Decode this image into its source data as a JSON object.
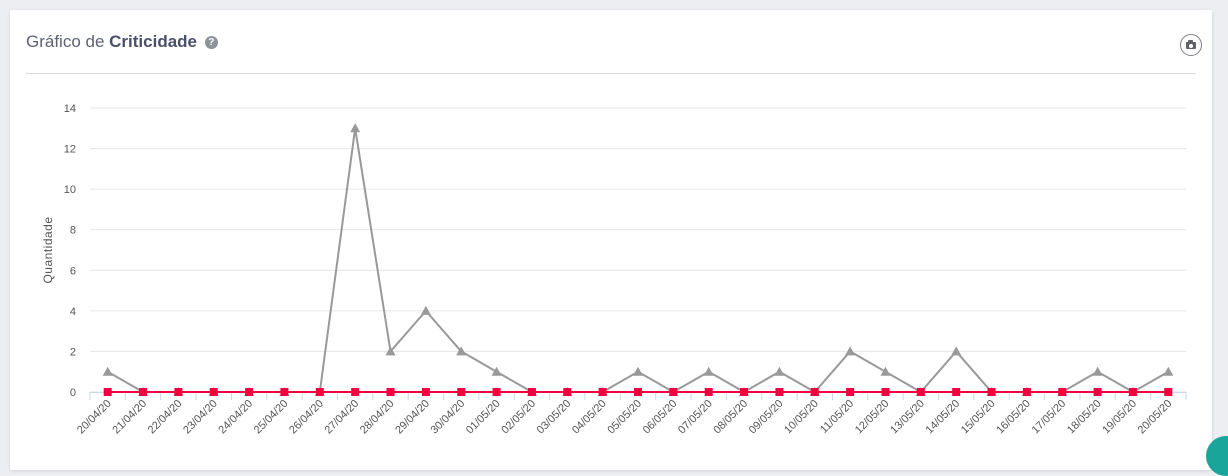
{
  "header": {
    "title_prefix": "Gráfico de ",
    "title_bold": "Criticidade",
    "help_icon": "question-circle-icon",
    "export_icon": "camera-icon"
  },
  "colors": {
    "series_gray": "#999999",
    "series_red": "#f0003f",
    "grid": "#e6e6e6"
  },
  "chart_data": {
    "type": "line",
    "title": "",
    "xlabel": "",
    "ylabel": "Quantidade",
    "ylim": [
      0,
      14
    ],
    "yticks": [
      0,
      2,
      4,
      6,
      8,
      10,
      12,
      14
    ],
    "grid": true,
    "categories": [
      "20/04/20",
      "21/04/20",
      "22/04/20",
      "23/04/20",
      "24/04/20",
      "25/04/20",
      "26/04/20",
      "27/04/20",
      "28/04/20",
      "29/04/20",
      "30/04/20",
      "01/05/20",
      "02/05/20",
      "03/05/20",
      "04/05/20",
      "05/05/20",
      "06/05/20",
      "07/05/20",
      "08/05/20",
      "09/05/20",
      "10/05/20",
      "11/05/20",
      "12/05/20",
      "13/05/20",
      "14/05/20",
      "15/05/20",
      "16/05/20",
      "17/05/20",
      "18/05/20",
      "19/05/20",
      "20/05/20"
    ],
    "series": [
      {
        "marker": "triangle",
        "color": "#999999",
        "values": [
          1,
          0,
          0,
          0,
          0,
          0,
          0,
          13,
          2,
          4,
          2,
          1,
          0,
          0,
          0,
          1,
          0,
          1,
          0,
          1,
          0,
          2,
          1,
          0,
          2,
          0,
          0,
          0,
          1,
          0,
          1
        ]
      },
      {
        "marker": "square",
        "color": "#f0003f",
        "values": [
          0,
          0,
          0,
          0,
          0,
          0,
          0,
          0,
          0,
          0,
          0,
          0,
          0,
          0,
          0,
          0,
          0,
          0,
          0,
          0,
          0,
          0,
          0,
          0,
          0,
          0,
          0,
          0,
          0,
          0,
          0
        ]
      }
    ]
  }
}
